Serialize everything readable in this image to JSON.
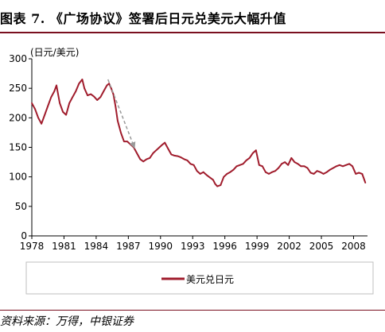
{
  "title": "图表 7. 《广场协议》签署后日元兑美元大幅升值",
  "source": "资料来源：万得，中银证券",
  "chart_data": {
    "type": "line",
    "unit_label": "(日元/美元)",
    "xlabel": "",
    "ylabel": "",
    "ylim": [
      0,
      300
    ],
    "yticks": [
      0,
      50,
      100,
      150,
      200,
      250,
      300
    ],
    "xlim": [
      1978,
      2009.3
    ],
    "xticks": [
      1978,
      1981,
      1984,
      1987,
      1990,
      1993,
      1996,
      1999,
      2002,
      2005,
      2008
    ],
    "grid": false,
    "legend_position": "bottom",
    "line_color": "#a01c2c",
    "arrow_color": "#999999",
    "annotation_arrow": {
      "from": [
        1985.1,
        265
      ],
      "to": [
        1987.6,
        148
      ]
    },
    "series": [
      {
        "name": "美元兑日元",
        "x": [
          1978.0,
          1978.3,
          1978.6,
          1978.9,
          1979.2,
          1979.5,
          1979.8,
          1980.1,
          1980.3,
          1980.6,
          1980.9,
          1981.2,
          1981.5,
          1981.8,
          1982.1,
          1982.4,
          1982.7,
          1982.9,
          1983.2,
          1983.5,
          1983.8,
          1984.1,
          1984.4,
          1984.7,
          1985.0,
          1985.2,
          1985.4,
          1985.6,
          1985.8,
          1986.0,
          1986.3,
          1986.6,
          1986.9,
          1987.2,
          1987.5,
          1987.8,
          1988.1,
          1988.4,
          1988.7,
          1989.0,
          1989.3,
          1989.6,
          1989.9,
          1990.2,
          1990.4,
          1990.7,
          1991.0,
          1991.3,
          1991.6,
          1991.9,
          1992.2,
          1992.5,
          1992.8,
          1993.1,
          1993.4,
          1993.7,
          1994.0,
          1994.3,
          1994.6,
          1994.9,
          1995.1,
          1995.3,
          1995.6,
          1995.9,
          1996.2,
          1996.5,
          1996.8,
          1997.1,
          1997.4,
          1997.7,
          1998.0,
          1998.3,
          1998.6,
          1998.9,
          1999.2,
          1999.5,
          1999.8,
          2000.1,
          2000.4,
          2000.7,
          2001.0,
          2001.3,
          2001.6,
          2001.9,
          2002.2,
          2002.5,
          2002.8,
          2003.1,
          2003.4,
          2003.7,
          2004.0,
          2004.3,
          2004.6,
          2004.9,
          2005.2,
          2005.5,
          2005.8,
          2006.1,
          2006.4,
          2006.7,
          2007.0,
          2007.3,
          2007.6,
          2007.9,
          2008.2,
          2008.5,
          2008.8,
          2009.0,
          2009.1
        ],
        "values": [
          225,
          215,
          200,
          190,
          205,
          220,
          235,
          245,
          255,
          225,
          210,
          205,
          225,
          235,
          245,
          258,
          265,
          250,
          238,
          240,
          236,
          230,
          235,
          245,
          255,
          258,
          250,
          240,
          220,
          195,
          175,
          160,
          160,
          155,
          150,
          140,
          130,
          126,
          130,
          132,
          140,
          145,
          150,
          155,
          158,
          148,
          138,
          136,
          135,
          133,
          130,
          128,
          122,
          120,
          110,
          105,
          108,
          103,
          99,
          95,
          88,
          84,
          86,
          100,
          105,
          108,
          112,
          118,
          120,
          122,
          128,
          132,
          140,
          145,
          120,
          118,
          108,
          105,
          108,
          110,
          115,
          122,
          125,
          120,
          132,
          125,
          122,
          118,
          118,
          115,
          107,
          105,
          110,
          108,
          105,
          108,
          112,
          115,
          118,
          120,
          118,
          120,
          122,
          118,
          105,
          107,
          105,
          95,
          90
        ]
      }
    ]
  }
}
